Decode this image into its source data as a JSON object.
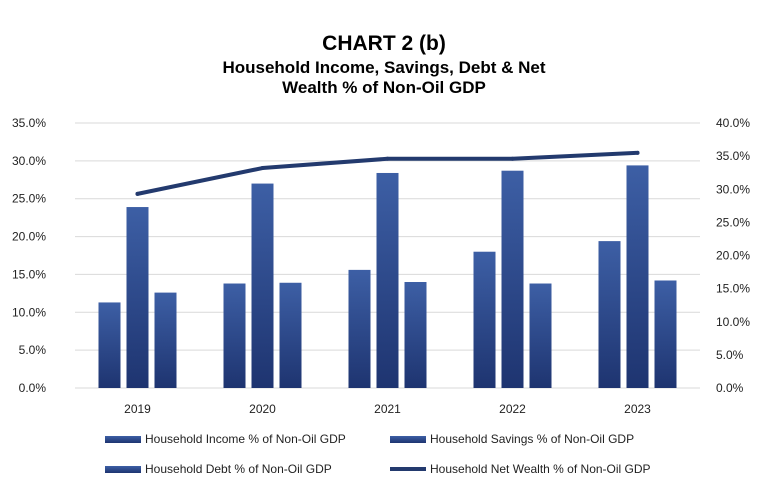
{
  "chart_data": {
    "type": "bar",
    "title": "CHART 2 (b)",
    "subtitle": "Household Income, Savings, Debt & Net Wealth % of Non-Oil GDP",
    "categories": [
      "2019",
      "2020",
      "2021",
      "2022",
      "2023"
    ],
    "series": [
      {
        "name": "Household Income % of Non-Oil GDP",
        "type": "bar",
        "axis": "left",
        "values": [
          11.3,
          13.8,
          15.6,
          18.0,
          19.4
        ]
      },
      {
        "name": "Household Savings % of Non-Oil GDP",
        "type": "bar",
        "axis": "left",
        "values": [
          23.9,
          27.0,
          28.4,
          28.7,
          29.4
        ]
      },
      {
        "name": "Household Debt % of Non-Oil GDP",
        "type": "bar",
        "axis": "left",
        "values": [
          12.6,
          13.9,
          14.0,
          13.8,
          14.2
        ]
      },
      {
        "name": "Household Net Wealth % of Non-Oil GDP",
        "type": "line",
        "axis": "right",
        "values": [
          29.3,
          33.2,
          34.6,
          34.6,
          35.5
        ]
      }
    ],
    "y_left": {
      "ylim": [
        0,
        35
      ],
      "ticks": [
        "0.0%",
        "5.0%",
        "10.0%",
        "15.0%",
        "20.0%",
        "25.0%",
        "30.0%",
        "35.0%"
      ]
    },
    "y_right": {
      "ylim": [
        0,
        40
      ],
      "ticks": [
        "0.0%",
        "5.0%",
        "10.0%",
        "15.0%",
        "20.0%",
        "25.0%",
        "30.0%",
        "35.0%",
        "40.0%"
      ]
    },
    "grid": true,
    "legend": "bottom",
    "colors": {
      "bar": "#2e4a8c",
      "bar_dark": "#1f3a7a",
      "line": "#233a6e",
      "grid": "#d9d9d9"
    }
  }
}
